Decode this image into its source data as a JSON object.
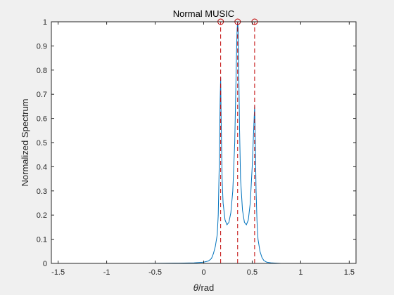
{
  "chart_data": {
    "type": "line",
    "title": "Normal MUSIC",
    "xlabel_symbol": "θ",
    "xlabel_unit": "/rad",
    "ylabel": "Normalized Spectrum",
    "xlim": [
      -1.57,
      1.57
    ],
    "ylim": [
      0,
      1
    ],
    "xticks": [
      -1.5,
      -1,
      -0.5,
      0,
      0.5,
      1,
      1.5
    ],
    "xtick_labels": [
      "-1.5",
      "-1",
      "-0.5",
      "0",
      "0.5",
      "1",
      "1.5"
    ],
    "yticks": [
      0,
      0.1,
      0.2,
      0.3,
      0.4,
      0.5,
      0.6,
      0.7,
      0.8,
      0.9,
      1
    ],
    "ytick_labels": [
      "0",
      "0.1",
      "0.2",
      "0.3",
      "0.4",
      "0.5",
      "0.6",
      "0.7",
      "0.8",
      "0.9",
      "1"
    ],
    "grid": false,
    "series": [
      {
        "color": "#0072bd",
        "x": [
          -1.57,
          -0.6,
          -0.3,
          -0.1,
          0.0,
          0.05,
          0.08,
          0.1,
          0.12,
          0.14,
          0.15,
          0.16,
          0.17,
          0.175,
          0.18,
          0.19,
          0.2,
          0.22,
          0.24,
          0.26,
          0.28,
          0.3,
          0.32,
          0.33,
          0.34,
          0.345,
          0.35,
          0.355,
          0.36,
          0.37,
          0.38,
          0.4,
          0.42,
          0.44,
          0.46,
          0.48,
          0.5,
          0.51,
          0.52,
          0.525,
          0.53,
          0.54,
          0.55,
          0.56,
          0.58,
          0.6,
          0.62,
          0.65,
          0.7,
          0.75,
          0.8,
          1.0,
          1.57
        ],
        "y": [
          0.0,
          0.0,
          0.001,
          0.002,
          0.005,
          0.01,
          0.02,
          0.04,
          0.07,
          0.12,
          0.2,
          0.4,
          0.68,
          0.77,
          0.6,
          0.35,
          0.25,
          0.18,
          0.16,
          0.17,
          0.21,
          0.3,
          0.5,
          0.7,
          0.9,
          0.97,
          1.0,
          0.97,
          0.85,
          0.55,
          0.35,
          0.22,
          0.17,
          0.16,
          0.18,
          0.25,
          0.4,
          0.5,
          0.6,
          0.65,
          0.55,
          0.3,
          0.17,
          0.1,
          0.05,
          0.025,
          0.012,
          0.005,
          0.002,
          0.001,
          0.0,
          0.0,
          0.0
        ]
      }
    ],
    "peaks": {
      "color": "#c00000",
      "x": [
        0.175,
        0.35,
        0.525
      ],
      "y": [
        1,
        1,
        1
      ]
    }
  }
}
